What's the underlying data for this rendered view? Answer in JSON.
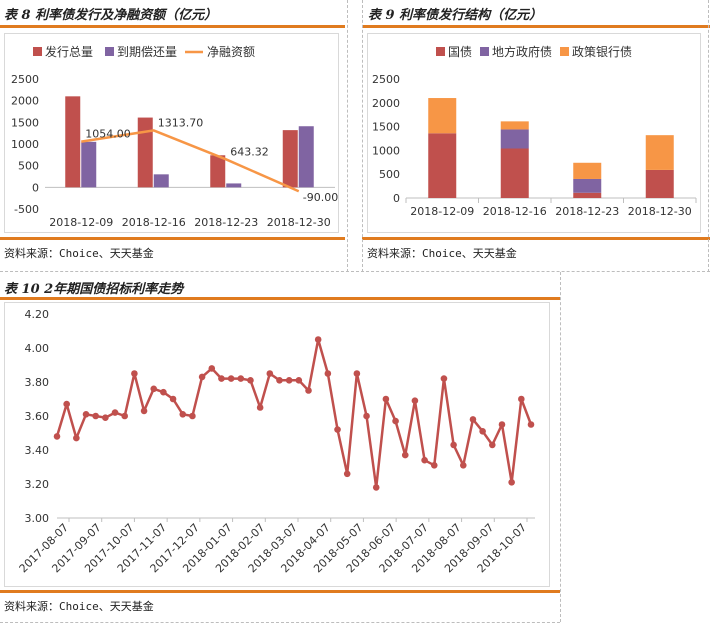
{
  "panel8": {
    "title": "表 8  利率债发行及净融资额（亿元）",
    "source": "资料来源：Choice、天天基金"
  },
  "panel9": {
    "title": "表 9  利率债发行结构（亿元）",
    "source": "资料来源：Choice、天天基金"
  },
  "panel10": {
    "title": "表 10  2年期国债招标利率走势",
    "source": "资料来源：Choice、天天基金"
  },
  "colors": {
    "red": "#c0504d",
    "purple": "#8064a2",
    "orange": "#f79646",
    "accent_rule": "#e07b1f"
  },
  "chart_data": [
    {
      "type": "bar",
      "categories": [
        "2018-12-09",
        "2018-12-16",
        "2018-12-23",
        "2018-12-30"
      ],
      "series": [
        {
          "name": "发行总量",
          "kind": "bar",
          "color": "#c0504d",
          "values": [
            2100,
            1610,
            740,
            1320
          ]
        },
        {
          "name": "到期偿还量",
          "kind": "bar",
          "color": "#8064a2",
          "values": [
            1050,
            300,
            90,
            1410
          ]
        },
        {
          "name": "净融资额",
          "kind": "line",
          "color": "#f79646",
          "values": [
            1054.0,
            1313.7,
            643.32,
            -90.0
          ]
        }
      ],
      "data_labels": [
        "1054.00",
        "1313.70",
        "643.32",
        "-90.00"
      ],
      "yticks": [
        "2500",
        "2000",
        "1500",
        "1000",
        "500",
        "0",
        "-500"
      ],
      "ylim": [
        -500,
        2500
      ],
      "legend": "top"
    },
    {
      "type": "bar",
      "stacked": true,
      "categories": [
        "2018-12-09",
        "2018-12-16",
        "2018-12-23",
        "2018-12-30"
      ],
      "series": [
        {
          "name": "国债",
          "color": "#c0504d",
          "values": [
            1360,
            1040,
            110,
            590
          ]
        },
        {
          "name": "地方政府债",
          "color": "#8064a2",
          "values": [
            0,
            400,
            290,
            0
          ]
        },
        {
          "name": "政策银行债",
          "color": "#f79646",
          "values": [
            740,
            170,
            340,
            730
          ]
        }
      ],
      "yticks": [
        "2500",
        "2000",
        "1500",
        "1000",
        "500",
        "0"
      ],
      "ylim": [
        0,
        2500
      ],
      "legend": "top"
    },
    {
      "type": "line",
      "xticks": [
        "2017-08-07",
        "2017-09-07",
        "2017-10-07",
        "2017-11-07",
        "2017-12-07",
        "2018-01-07",
        "2018-02-07",
        "2018-03-07",
        "2018-04-07",
        "2018-05-07",
        "2018-06-07",
        "2018-07-07",
        "2018-08-07",
        "2018-09-07",
        "2018-10-07"
      ],
      "yticks": [
        "4.20",
        "4.00",
        "3.80",
        "3.60",
        "3.40",
        "3.20",
        "3.00"
      ],
      "ylim": [
        3.0,
        4.2
      ],
      "series": [
        {
          "name": "",
          "color": "#c0504d",
          "values": [
            3.48,
            3.67,
            3.47,
            3.61,
            3.6,
            3.59,
            3.62,
            3.6,
            3.85,
            3.63,
            3.76,
            3.74,
            3.7,
            3.61,
            3.6,
            3.83,
            3.88,
            3.82,
            3.82,
            3.82,
            3.81,
            3.65,
            3.85,
            3.81,
            3.81,
            3.81,
            3.75,
            4.05,
            3.85,
            3.52,
            3.26,
            3.85,
            3.6,
            3.18,
            3.7,
            3.57,
            3.37,
            3.69,
            3.34,
            3.31,
            3.82,
            3.43,
            3.31,
            3.58,
            3.51,
            3.43,
            3.55,
            3.21,
            3.7,
            3.55
          ]
        }
      ]
    }
  ]
}
